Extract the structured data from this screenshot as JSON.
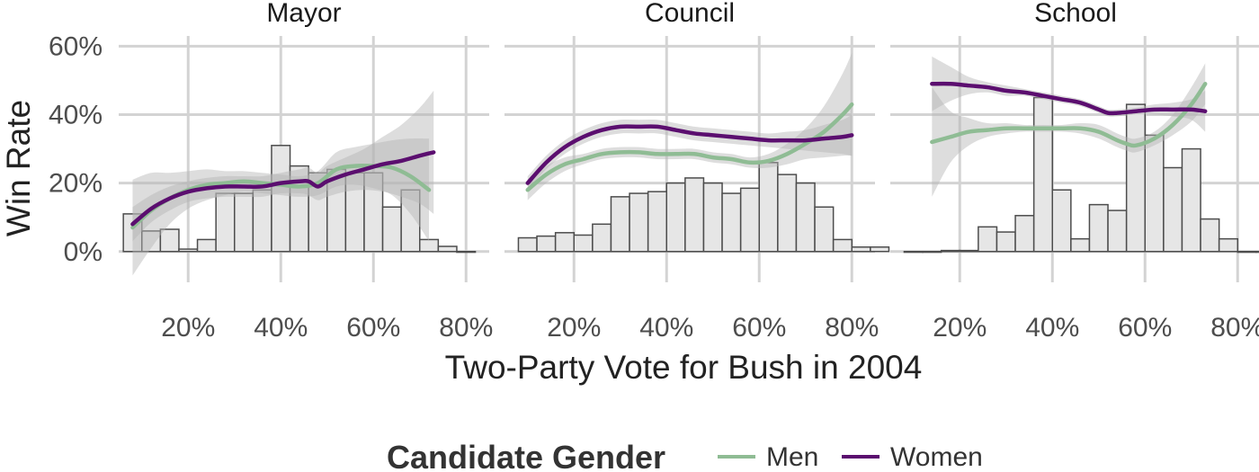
{
  "chart_data": {
    "type": "bar+line",
    "xlabel": "Two-Party Vote for Bush in 2004",
    "ylabel": "Win Rate",
    "x_ticks": [
      "20%",
      "40%",
      "60%",
      "80%"
    ],
    "x_tick_values": [
      20,
      40,
      60,
      80
    ],
    "y_ticks": [
      "0%",
      "20%",
      "40%",
      "60%"
    ],
    "y_tick_values": [
      0,
      20,
      40,
      60
    ],
    "xlim": [
      5,
      85
    ],
    "ylim": [
      -9,
      63
    ],
    "grid": true,
    "colors": {
      "men": "#8fbc94",
      "women": "#5b0e6f",
      "bar_fill": "#e6e6e6",
      "bar_stroke": "#4d4d4d",
      "band": "#b3b3b3",
      "grid": "#d3d3d3"
    },
    "legend": {
      "title": "Candidate Gender",
      "position": "bottom",
      "items": [
        {
          "label": "Men",
          "color": "#8fbc94"
        },
        {
          "label": "Women",
          "color": "#5b0e6f"
        }
      ]
    },
    "facets": [
      {
        "title": "Mayor",
        "hist": {
          "bin_start": 6,
          "bin_width": 4,
          "heights": [
            11,
            6,
            6.5,
            0.7,
            3.5,
            17,
            17,
            18,
            31,
            25,
            23,
            24,
            23,
            23,
            13,
            18,
            3.5,
            1.5,
            0
          ]
        },
        "men": {
          "x": [
            8,
            12,
            16,
            20,
            24,
            28,
            32,
            36,
            40,
            44,
            48,
            52,
            56,
            60,
            64,
            68,
            72
          ],
          "y": [
            7,
            12,
            15.5,
            18,
            19.5,
            20,
            20.5,
            20,
            19.5,
            19,
            20,
            24,
            25,
            25,
            24.5,
            22,
            18
          ],
          "lo": [
            -7,
            1,
            8,
            12.5,
            15,
            16.5,
            17.5,
            17,
            16.5,
            16,
            16.5,
            19,
            19.5,
            18.5,
            16.5,
            11,
            3
          ],
          "hi": [
            21,
            23,
            23,
            23.5,
            24,
            23.5,
            23.5,
            23,
            22.5,
            22,
            23.5,
            29,
            30.5,
            31.5,
            32.5,
            33,
            33
          ]
        },
        "women": {
          "x": [
            8,
            12,
            16,
            20,
            24,
            28,
            32,
            36,
            40,
            44,
            46,
            48,
            50,
            54,
            58,
            62,
            66,
            70,
            73
          ],
          "y": [
            8,
            12.5,
            15.5,
            17.5,
            18.5,
            19,
            19,
            19,
            20,
            20.5,
            20.5,
            19,
            20.5,
            22.5,
            24,
            25.5,
            26.5,
            28,
            29
          ],
          "lo": [
            3,
            8.5,
            12,
            14.5,
            15.5,
            16,
            16,
            16,
            17,
            17,
            16.5,
            15,
            16,
            17.5,
            18,
            17.5,
            16,
            14,
            11
          ],
          "hi": [
            13,
            16.5,
            19,
            20.5,
            21.5,
            22,
            22,
            22,
            23,
            24,
            24.5,
            23,
            25,
            27.5,
            30,
            33.5,
            37,
            42,
            47
          ]
        }
      },
      {
        "title": "Council",
        "hist": {
          "bin_start": 8,
          "bin_width": 4,
          "heights": [
            4,
            4.5,
            5.5,
            4.8,
            8,
            16,
            17,
            17.5,
            20,
            21.5,
            20,
            17,
            18.5,
            26,
            22.5,
            20,
            13,
            3.5,
            1.3,
            1.3
          ]
        },
        "men": {
          "x": [
            10,
            14,
            18,
            22,
            26,
            30,
            34,
            38,
            42,
            46,
            50,
            54,
            58,
            62,
            66,
            70,
            74,
            78,
            80
          ],
          "y": [
            18,
            22.5,
            25.5,
            27,
            28.5,
            29,
            29,
            28.5,
            28.5,
            28.5,
            27.5,
            27,
            26,
            26.5,
            28.5,
            31.5,
            35,
            40,
            43
          ],
          "lo": [
            15,
            20,
            23.5,
            25.5,
            27,
            27.5,
            27.5,
            27,
            27,
            27,
            26,
            25.5,
            24.5,
            24.5,
            25.5,
            27,
            27.5,
            28,
            28
          ],
          "hi": [
            21,
            25,
            27.5,
            28.5,
            30,
            30.5,
            30.5,
            30,
            30,
            30,
            29,
            28.5,
            27.5,
            28.5,
            31.5,
            36,
            42.5,
            52,
            58
          ]
        },
        "women": {
          "x": [
            10,
            14,
            18,
            22,
            26,
            30,
            34,
            38,
            42,
            46,
            50,
            54,
            58,
            62,
            66,
            70,
            74,
            78,
            80
          ],
          "y": [
            20,
            26,
            30.5,
            33.5,
            35.5,
            36.5,
            36.5,
            36.5,
            35.5,
            34.5,
            34,
            33.5,
            33,
            32.5,
            32.5,
            32.5,
            33,
            33.5,
            34
          ],
          "lo": [
            18,
            24,
            28.5,
            31.5,
            33.5,
            34.5,
            34.5,
            34.5,
            33.5,
            32.5,
            32,
            31.5,
            31,
            30.5,
            30,
            29.5,
            29,
            28.5,
            28
          ],
          "hi": [
            22,
            28,
            32.5,
            35.5,
            37.5,
            38.5,
            38.5,
            38.5,
            37.5,
            36.5,
            36,
            35.5,
            35,
            34.5,
            35,
            35.5,
            37,
            38.5,
            40
          ]
        }
      },
      {
        "title": "School",
        "hist": {
          "bin_start": 8,
          "bin_width": 4,
          "heights": [
            0,
            0,
            0.3,
            0.3,
            7.2,
            5.7,
            10.5,
            45,
            18,
            3.7,
            13.7,
            12,
            43,
            34,
            24.5,
            30,
            9.5,
            3.7,
            0,
            0,
            0
          ]
        },
        "men": {
          "x": [
            14,
            18,
            22,
            26,
            30,
            34,
            38,
            42,
            46,
            50,
            54,
            56,
            58,
            62,
            66,
            70,
            73
          ],
          "y": [
            32,
            33.5,
            35,
            35.5,
            36,
            36,
            36,
            36,
            36,
            35,
            32.5,
            31.5,
            31,
            33,
            37,
            43,
            49
          ],
          "lo": [
            16,
            26,
            31,
            33.5,
            34.5,
            35,
            35,
            35,
            34.5,
            33,
            30.5,
            29.5,
            29,
            31,
            34,
            38,
            43
          ],
          "hi": [
            48,
            41,
            39,
            37.5,
            37.5,
            37,
            37,
            37,
            37.5,
            37,
            34.5,
            33.5,
            33,
            35,
            40,
            48,
            55
          ]
        },
        "women": {
          "x": [
            14,
            18,
            22,
            26,
            30,
            34,
            38,
            42,
            46,
            50,
            52,
            54,
            58,
            62,
            66,
            70,
            73
          ],
          "y": [
            49,
            49,
            48.5,
            48,
            47,
            46.5,
            45.5,
            44.5,
            43.5,
            41.5,
            40.5,
            40.5,
            41,
            41.5,
            41.5,
            41.5,
            41
          ],
          "lo": [
            41,
            44,
            46,
            46.5,
            45.5,
            45.5,
            44.5,
            43.5,
            42.5,
            40.5,
            39.5,
            39.5,
            40,
            40,
            39.5,
            38.5,
            35
          ],
          "hi": [
            57,
            54,
            51,
            49.5,
            48.5,
            47.5,
            46.5,
            45.5,
            44.5,
            42.5,
            41.5,
            41.5,
            42,
            43,
            43.5,
            44.5,
            47
          ]
        }
      }
    ]
  }
}
